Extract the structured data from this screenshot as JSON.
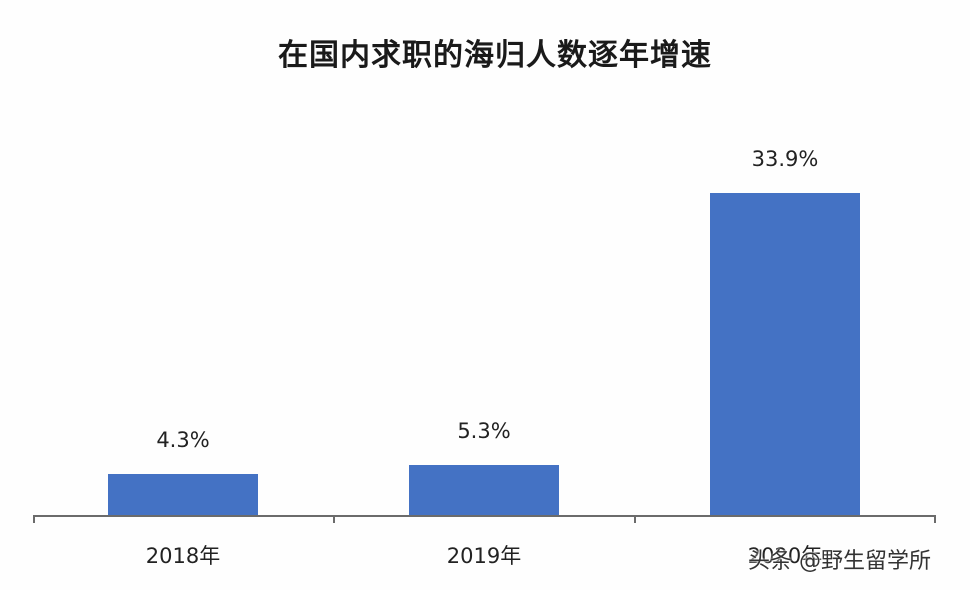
{
  "chart_data": {
    "type": "bar",
    "title": "在国内求职的海归人数逐年增速",
    "categories": [
      "2018年",
      "2019年",
      "2020年"
    ],
    "values": [
      4.3,
      5.3,
      33.9
    ],
    "value_labels": [
      "4.3%",
      "5.3%",
      "33.9%"
    ],
    "xlabel": "",
    "ylabel": "",
    "ylim": [
      0,
      34
    ],
    "grid": false,
    "legend": null,
    "bar_color": "#4472c4"
  },
  "watermark": "头条 @野生留学所"
}
